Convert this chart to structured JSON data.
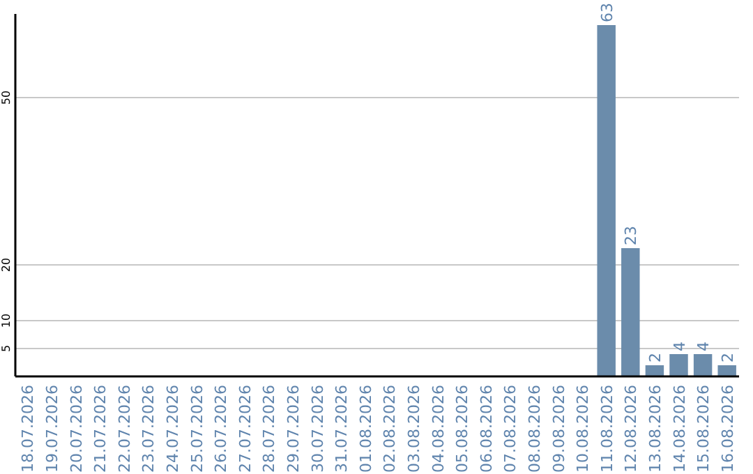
{
  "chart_data": {
    "type": "bar",
    "categories": [
      "18.07.2026",
      "19.07.2026",
      "20.07.2026",
      "21.07.2026",
      "22.07.2026",
      "23.07.2026",
      "24.07.2026",
      "25.07.2026",
      "26.07.2026",
      "27.07.2026",
      "28.07.2026",
      "29.07.2026",
      "30.07.2026",
      "31.07.2026",
      "01.08.2026",
      "02.08.2026",
      "03.08.2026",
      "04.08.2026",
      "05.08.2026",
      "06.08.2026",
      "07.08.2026",
      "08.08.2026",
      "09.08.2026",
      "10.08.2026",
      "11.08.2026",
      "12.08.2026",
      "13.08.2026",
      "14.08.2026",
      "15.08.2026",
      "16.08.2026"
    ],
    "values": [
      0,
      0,
      0,
      0,
      0,
      0,
      0,
      0,
      0,
      0,
      0,
      0,
      0,
      0,
      0,
      0,
      0,
      0,
      0,
      0,
      0,
      0,
      0,
      0,
      63,
      23,
      2,
      4,
      4,
      2
    ],
    "value_labels": [
      null,
      null,
      null,
      null,
      null,
      null,
      null,
      null,
      null,
      null,
      null,
      null,
      null,
      null,
      null,
      null,
      null,
      null,
      null,
      null,
      null,
      null,
      null,
      null,
      "63",
      "23",
      "2",
      "4",
      "4",
      "2"
    ],
    "color": "#6b8cab",
    "ylim": [
      0,
      65
    ],
    "yticks": [
      5,
      10,
      20,
      50
    ],
    "grid": "y"
  }
}
